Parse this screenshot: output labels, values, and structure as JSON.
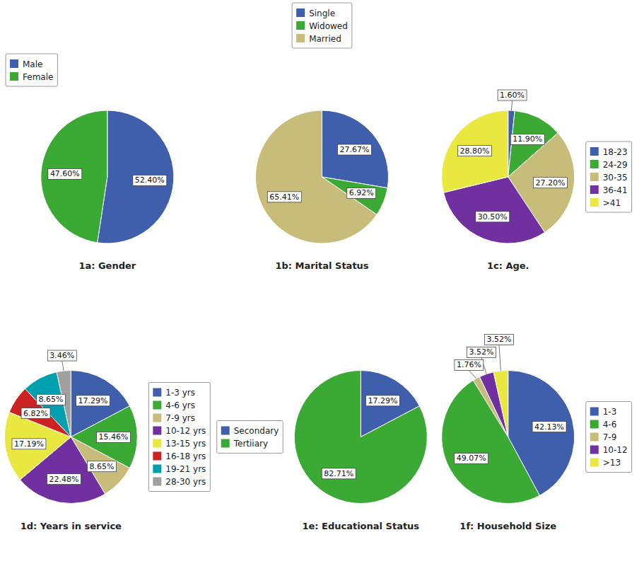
{
  "chart_data": [
    {
      "type": "pie",
      "title": "1a: Gender",
      "categories": [
        "Male",
        "Female"
      ],
      "values": [
        52.4,
        47.6
      ],
      "value_labels": [
        "52.40%",
        "47.60%"
      ],
      "colors": [
        "#3f5fad",
        "#3aaa35"
      ],
      "data_labels": true,
      "legend": "top-left"
    },
    {
      "type": "pie",
      "title": "1b: Marital Status",
      "categories": [
        "Single",
        "Widowed",
        "Married"
      ],
      "values": [
        27.67,
        6.92,
        65.41
      ],
      "value_labels": [
        "27.67%",
        "6.92%",
        "65.41%"
      ],
      "colors": [
        "#3f5fad",
        "#3aaa35",
        "#c8bc7a"
      ],
      "data_labels": true,
      "legend": "top"
    },
    {
      "type": "pie",
      "title": "1c: Age.",
      "categories": [
        "18-23",
        "24-29",
        "30-35",
        "36-41",
        ">41"
      ],
      "values": [
        1.6,
        11.9,
        27.2,
        30.5,
        28.8
      ],
      "value_labels": [
        "1.60%",
        "11.90%",
        "27.20%",
        "30.50%",
        "28.80%"
      ],
      "colors": [
        "#3f5fad",
        "#3aaa35",
        "#c8bc7a",
        "#7030a0",
        "#e8e840"
      ],
      "data_labels": true,
      "legend": "right"
    },
    {
      "type": "pie",
      "title": "1d: Years in service",
      "categories": [
        "1-3 yrs",
        "4-6 yrs",
        "7-9 yrs",
        "10-12 yrs",
        "13-15 yrs",
        "16-18 yrs",
        "19-21 yrs",
        "28-30 yrs"
      ],
      "values": [
        17.29,
        15.46,
        8.65,
        22.48,
        17.19,
        6.82,
        8.65,
        3.46
      ],
      "value_labels": [
        "17.29%",
        "15.46%",
        "8.65%",
        "22.48%",
        "17.19%",
        "6.82%",
        "8.65%",
        "3.46%"
      ],
      "colors": [
        "#3f5fad",
        "#3aaa35",
        "#c8bc7a",
        "#7030a0",
        "#e8e840",
        "#cc2222",
        "#00a0b0",
        "#a0a0a0"
      ],
      "data_labels": true,
      "legend": "right"
    },
    {
      "type": "pie",
      "title": "1e: Educational Status",
      "categories": [
        "Secondary",
        "Tertiiary"
      ],
      "values": [
        17.29,
        82.71
      ],
      "value_labels": [
        "17.29%",
        "82.71%"
      ],
      "colors": [
        "#3f5fad",
        "#3aaa35"
      ],
      "data_labels": true,
      "legend": "left"
    },
    {
      "type": "pie",
      "title": "1f: Household Size",
      "categories": [
        "1-3",
        "4-6",
        "7-9",
        "10-12",
        ">13"
      ],
      "values": [
        42.13,
        49.07,
        1.76,
        3.52,
        3.52
      ],
      "value_labels": [
        "42.13%",
        "49.07%",
        "1.76%",
        "3.52%",
        "3.52%"
      ],
      "colors": [
        "#3f5fad",
        "#3aaa35",
        "#c8bc7a",
        "#7030a0",
        "#e8e840"
      ],
      "data_labels": true,
      "legend": "right"
    }
  ]
}
